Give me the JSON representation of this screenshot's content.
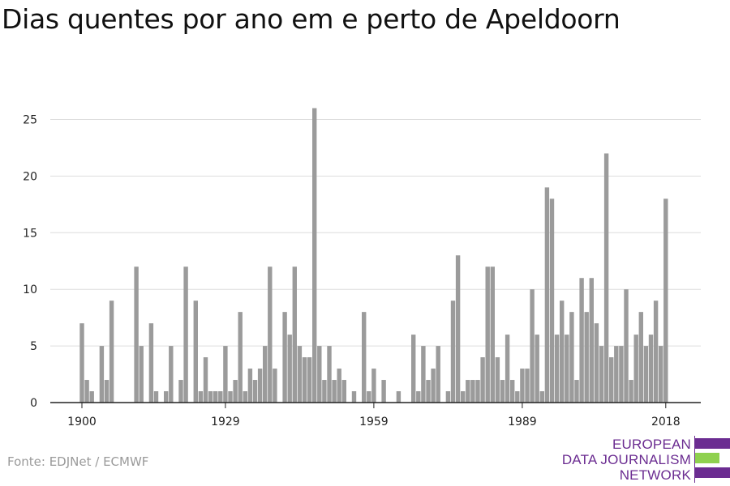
{
  "title": "Dias quentes por ano em e perto de Apeldoorn",
  "source": "Fonte: EDJNet / ECMWF",
  "logo": {
    "lines": [
      "EUROPEAN",
      "DATA JOURNALISM",
      "NETWORK"
    ]
  },
  "colors": {
    "bar": "#9b9b9b",
    "grid": "#dddddd",
    "axis": "#222222",
    "logo_purple": "#6b2c91",
    "logo_green": "#8fd14f"
  },
  "chart_data": {
    "type": "bar",
    "title": "Dias quentes por ano em e perto de Apeldoorn",
    "xlabel": "",
    "ylabel": "",
    "x_ticks": [
      1900,
      1929,
      1959,
      1989,
      2018
    ],
    "y_ticks": [
      0,
      5,
      10,
      15,
      20,
      25
    ],
    "ylim": [
      0,
      27
    ],
    "grid": true,
    "legend": "none",
    "x": [
      1900,
      1901,
      1902,
      1903,
      1904,
      1905,
      1906,
      1907,
      1908,
      1909,
      1910,
      1911,
      1912,
      1913,
      1914,
      1915,
      1916,
      1917,
      1918,
      1919,
      1920,
      1921,
      1922,
      1923,
      1924,
      1925,
      1926,
      1927,
      1928,
      1929,
      1930,
      1931,
      1932,
      1933,
      1934,
      1935,
      1936,
      1937,
      1938,
      1939,
      1940,
      1941,
      1942,
      1943,
      1944,
      1945,
      1946,
      1947,
      1948,
      1949,
      1950,
      1951,
      1952,
      1953,
      1954,
      1955,
      1956,
      1957,
      1958,
      1959,
      1960,
      1961,
      1962,
      1963,
      1964,
      1965,
      1966,
      1967,
      1968,
      1969,
      1970,
      1971,
      1972,
      1973,
      1974,
      1975,
      1976,
      1977,
      1978,
      1979,
      1980,
      1981,
      1982,
      1983,
      1984,
      1985,
      1986,
      1987,
      1988,
      1989,
      1990,
      1991,
      1992,
      1993,
      1994,
      1995,
      1996,
      1997,
      1998,
      1999,
      2000,
      2001,
      2002,
      2003,
      2004,
      2005,
      2006,
      2007,
      2008,
      2009,
      2010,
      2011,
      2012,
      2013,
      2014,
      2015,
      2016,
      2017,
      2018
    ],
    "values": [
      7,
      2,
      1,
      0,
      5,
      2,
      9,
      0,
      0,
      0,
      0,
      12,
      5,
      0,
      7,
      1,
      0,
      1,
      5,
      0,
      2,
      12,
      0,
      9,
      1,
      4,
      1,
      1,
      1,
      5,
      1,
      2,
      8,
      1,
      3,
      2,
      3,
      5,
      12,
      3,
      0,
      8,
      6,
      12,
      5,
      4,
      4,
      26,
      5,
      2,
      5,
      2,
      3,
      2,
      0,
      1,
      0,
      8,
      1,
      3,
      0,
      2,
      0,
      0,
      1,
      0,
      0,
      6,
      1,
      5,
      2,
      3,
      5,
      0,
      1,
      9,
      13,
      1,
      2,
      2,
      2,
      4,
      12,
      12,
      4,
      2,
      6,
      2,
      1,
      3,
      3,
      10,
      6,
      1,
      19,
      18,
      6,
      9,
      6,
      8,
      2,
      11,
      8,
      11,
      7,
      5,
      22,
      4,
      5,
      5,
      10,
      2,
      6,
      8,
      5,
      6,
      9,
      5,
      18
    ]
  }
}
